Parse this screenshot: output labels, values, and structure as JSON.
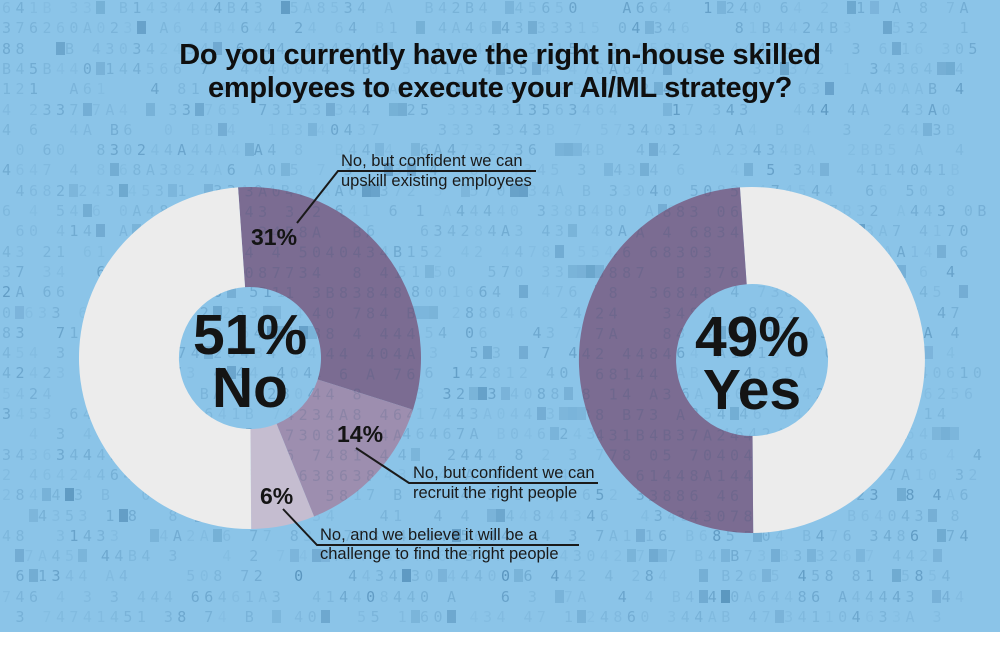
{
  "title": {
    "line1": "Do you currently have the right in-house skilled",
    "line2": "employees to execute your AI/ML strategy?"
  },
  "colors": {
    "background_blue": "#8bc4e8",
    "pattern_digit_blue": "#35719e",
    "dark_purple": "#7b6c92",
    "medium_purple": "#9d8eaf",
    "light_purple": "#c5bdd0",
    "segment_white": "#ececec",
    "text_black": "#141414"
  },
  "pattern_chars": "3444648203B4A15637",
  "chart_data": [
    {
      "type": "donut",
      "side": "No",
      "center_value": "51%",
      "center_label": "No",
      "start_angle_deg": -4,
      "segments": [
        {
          "label": "No, but confident we can upskill existing employees",
          "value": 31,
          "color": "#7b6c92"
        },
        {
          "label": "No, but confident we can recruit the right people",
          "value": 14,
          "color": "#9d8eaf"
        },
        {
          "label": "No, and we believe it will be a challenge to find the right people",
          "value": 6,
          "color": "#c5bdd0"
        },
        {
          "label": "",
          "value": 49,
          "color": "#ececec"
        }
      ]
    },
    {
      "type": "donut",
      "side": "Yes",
      "center_value": "49%",
      "center_label": "Yes",
      "start_angle_deg": -4,
      "segments": [
        {
          "label": "",
          "value": 51,
          "color": "#ececec"
        },
        {
          "label": "Yes",
          "value": 49,
          "color": "#7b6c92"
        }
      ]
    }
  ],
  "callouts": [
    {
      "pct_label": "31%",
      "line1": "No, but confident we can",
      "line2": "upskill existing employees"
    },
    {
      "pct_label": "14%",
      "line1": "No, but confident we can",
      "line2": "recruit the right people"
    },
    {
      "pct_label": "6%",
      "line1": "No, and we believe it will be a",
      "line2": "challenge to find the right people"
    }
  ]
}
